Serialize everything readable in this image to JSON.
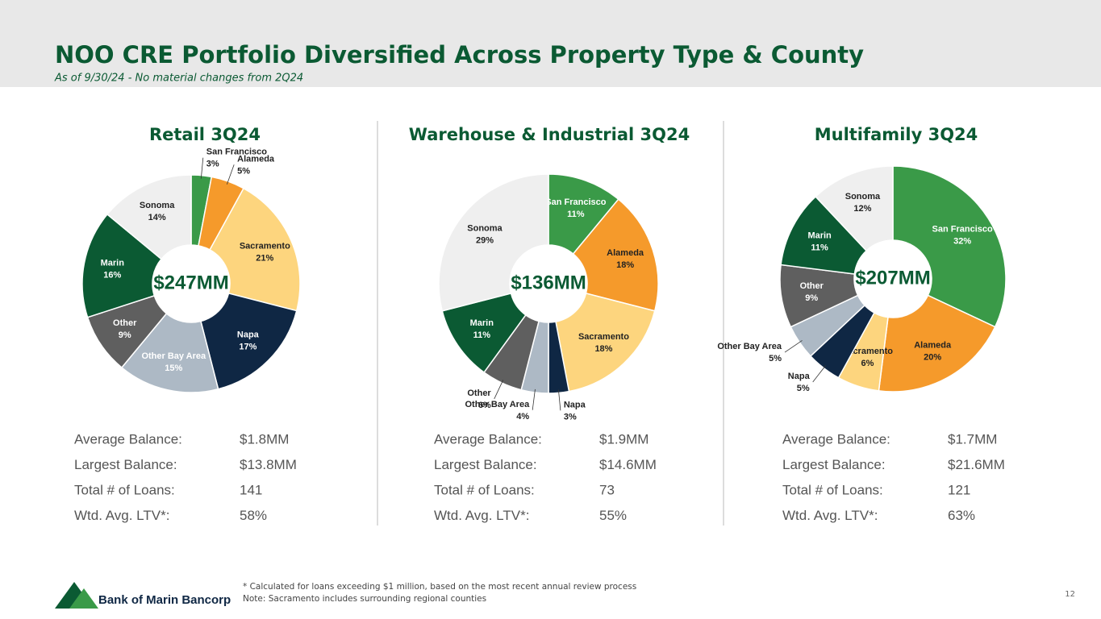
{
  "header": {
    "title": "NOO CRE Portfolio Diversified Across Property Type & County",
    "subtitle": "As of 9/30/24 - No material changes from 2Q24"
  },
  "chart_data": [
    {
      "type": "pie",
      "title": "Retail 3Q24",
      "center_label": "$247MM",
      "categories": [
        "San Francisco",
        "Alameda",
        "Sacramento",
        "Napa",
        "Other Bay Area",
        "Other",
        "Marin",
        "Sonoma"
      ],
      "values": [
        3,
        5,
        21,
        17,
        15,
        9,
        16,
        14
      ],
      "value_labels": [
        "3%",
        "5%",
        "21%",
        "17%",
        "15%",
        "9%",
        "16%",
        "14%"
      ],
      "colors": [
        "#3a9a48",
        "#f59a2b",
        "#fdd57e",
        "#0f2744",
        "#adb9c5",
        "#5f5f5f",
        "#0b5a33",
        "#efefef"
      ]
    },
    {
      "type": "pie",
      "title": "Warehouse & Industrial 3Q24",
      "center_label": "$136MM",
      "categories": [
        "San Francisco",
        "Alameda",
        "Sacramento",
        "Napa",
        "Other Bay Area",
        "Other",
        "Marin",
        "Sonoma"
      ],
      "values": [
        11,
        18,
        18,
        3,
        4,
        6,
        11,
        29
      ],
      "value_labels": [
        "11%",
        "18%",
        "18%",
        "3%",
        "4%",
        "6%",
        "11%",
        "29%"
      ],
      "colors": [
        "#3a9a48",
        "#f59a2b",
        "#fdd57e",
        "#0f2744",
        "#adb9c5",
        "#5f5f5f",
        "#0b5a33",
        "#efefef"
      ]
    },
    {
      "type": "pie",
      "title": "Multifamily 3Q24",
      "center_label": "$207MM",
      "categories": [
        "San Francisco",
        "Alameda",
        "Sacramento",
        "Napa",
        "Other Bay Area",
        "Other",
        "Marin",
        "Sonoma"
      ],
      "values": [
        32,
        20,
        6,
        5,
        5,
        9,
        11,
        12
      ],
      "value_labels": [
        "32%",
        "20%",
        "6%",
        "5%",
        "5%",
        "9%",
        "11%",
        "12%"
      ],
      "colors": [
        "#3a9a48",
        "#f59a2b",
        "#fdd57e",
        "#0f2744",
        "#adb9c5",
        "#5f5f5f",
        "#0b5a33",
        "#efefef"
      ]
    }
  ],
  "stats": [
    [
      [
        "Average Balance:",
        "$1.8MM"
      ],
      [
        "Largest Balance:",
        "$13.8MM"
      ],
      [
        "Total # of Loans:",
        "141"
      ],
      [
        "Wtd. Avg. LTV*:",
        "58%"
      ]
    ],
    [
      [
        "Average Balance:",
        "$1.9MM"
      ],
      [
        "Largest Balance:",
        "$14.6MM"
      ],
      [
        "Total # of Loans:",
        "73"
      ],
      [
        "Wtd. Avg. LTV*:",
        "55%"
      ]
    ],
    [
      [
        "Average Balance:",
        "$1.7MM"
      ],
      [
        "Largest Balance:",
        "$21.6MM"
      ],
      [
        "Total # of Loans:",
        "121"
      ],
      [
        "Wtd. Avg. LTV*:",
        "63%"
      ]
    ]
  ],
  "footer": {
    "logo": "Bank of Marin Bancorp",
    "notes": [
      "* Calculated for loans exceeding $1 million, based on the most recent annual review process",
      "Note: Sacramento includes surrounding regional counties"
    ],
    "page": "12"
  }
}
